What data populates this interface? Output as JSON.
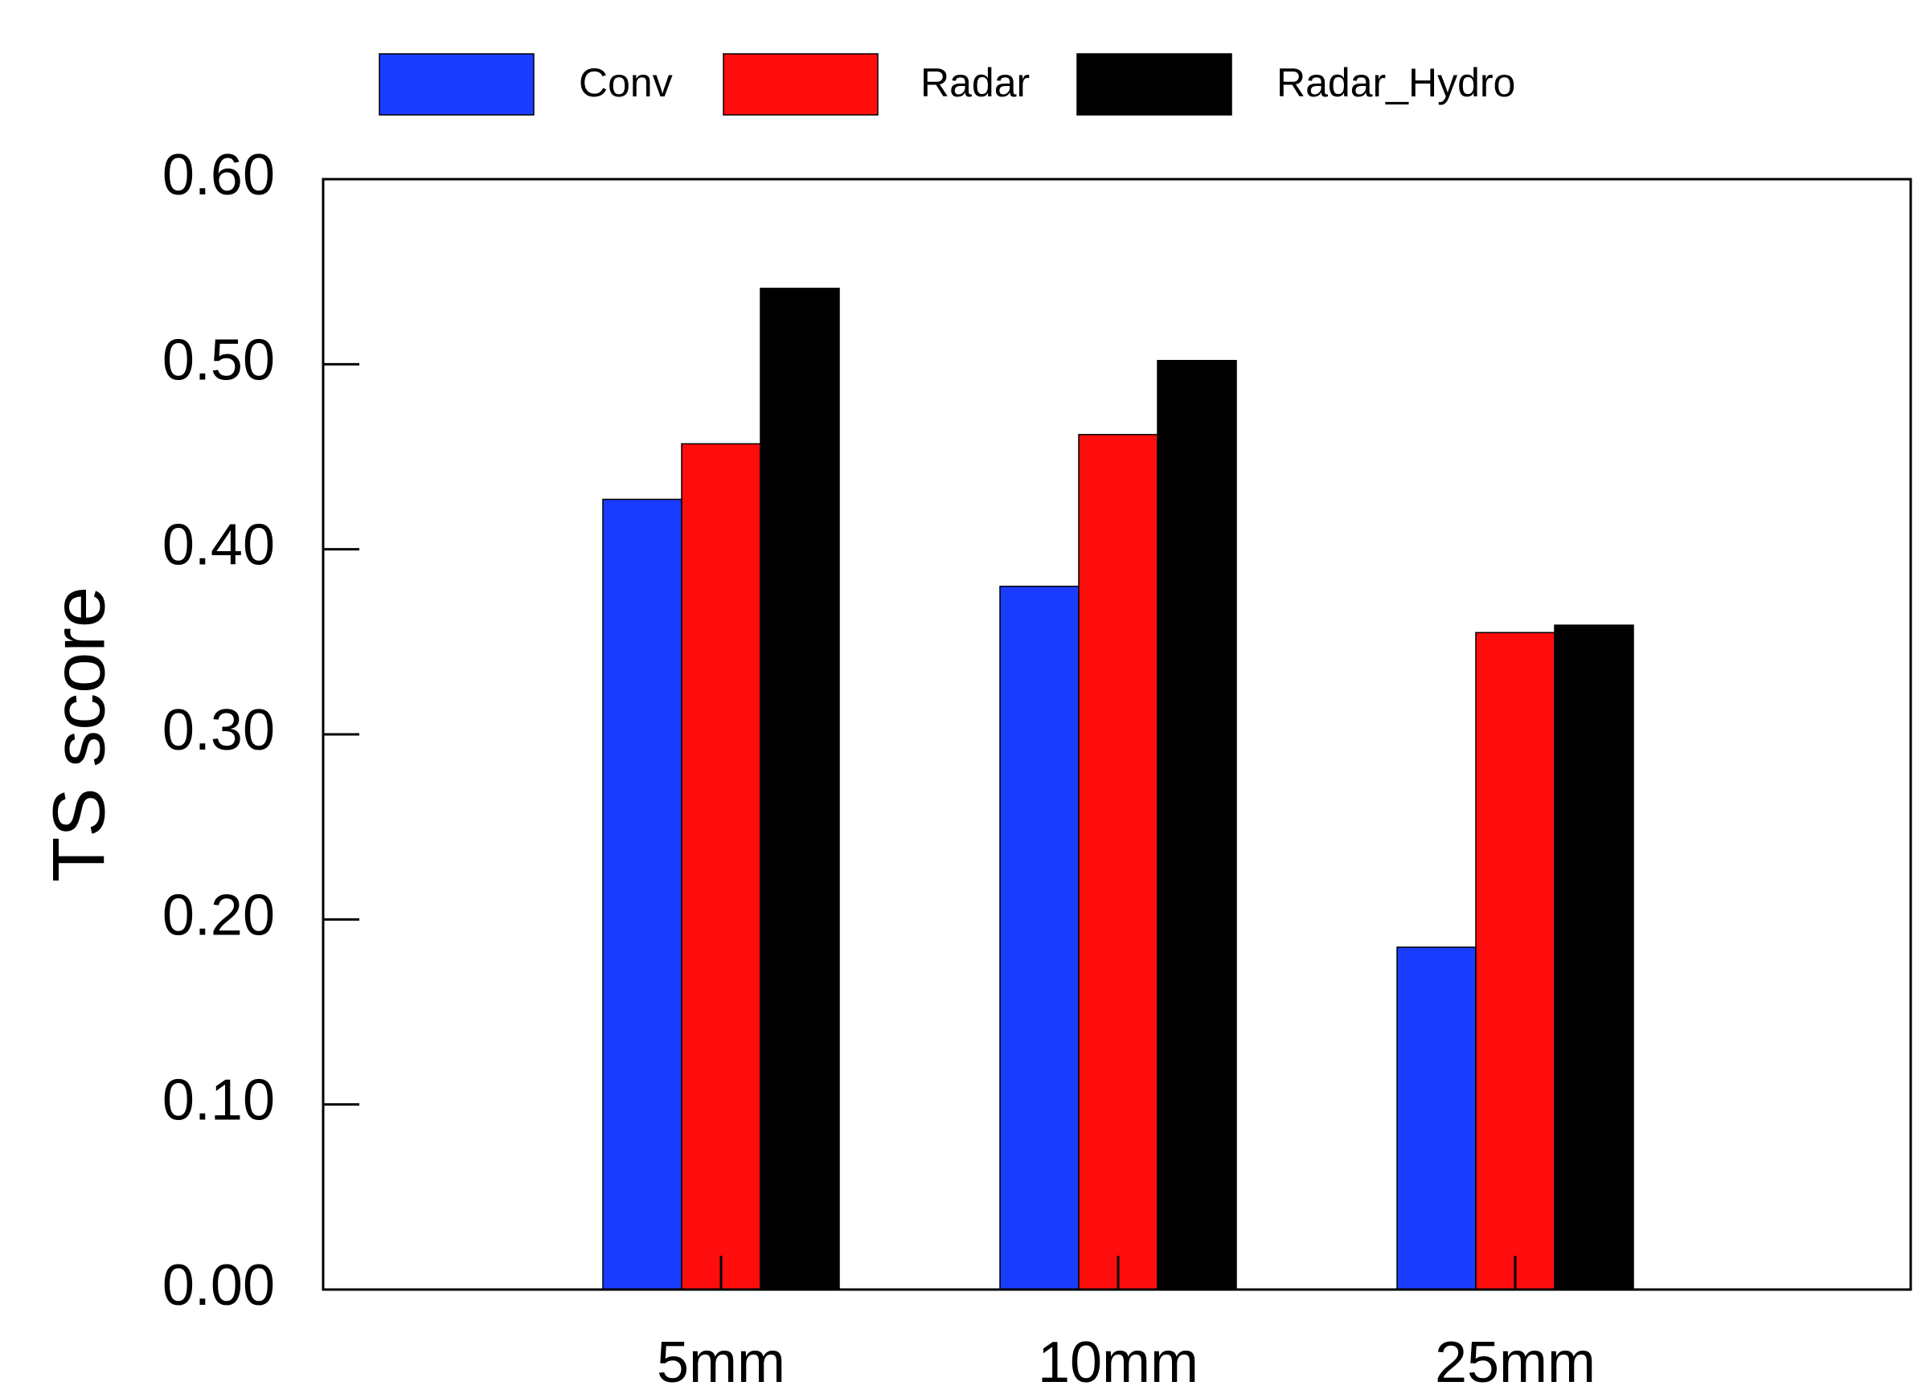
{
  "chart_data": {
    "type": "bar",
    "title": "",
    "xlabel": "",
    "ylabel": "TS score",
    "ylim": [
      0,
      0.6
    ],
    "yticks": [
      "0.00",
      "0.10",
      "0.20",
      "0.30",
      "0.40",
      "0.50",
      "0.60"
    ],
    "categories": [
      "5mm",
      "10mm",
      "25mm"
    ],
    "grid": false,
    "legend_position": "top",
    "series": [
      {
        "name": "Conv",
        "color": "#1a3cff",
        "values": [
          0.427,
          0.38,
          0.185
        ]
      },
      {
        "name": "Radar",
        "color": "#ff0d0d",
        "values": [
          0.457,
          0.462,
          0.355
        ]
      },
      {
        "name": "Radar_Hydro",
        "color": "#000000",
        "values": [
          0.541,
          0.502,
          0.359
        ]
      }
    ]
  }
}
